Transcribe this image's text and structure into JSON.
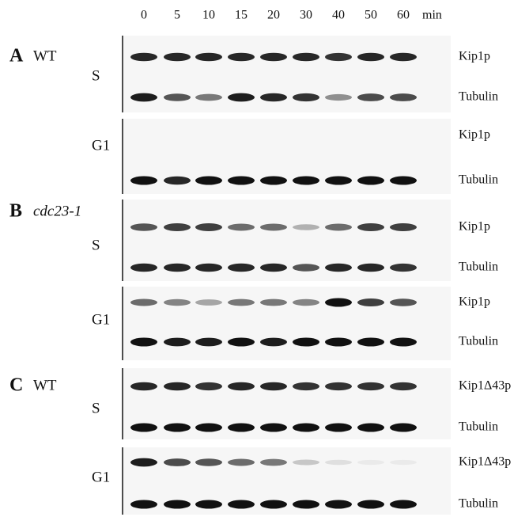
{
  "header": {
    "time_points": [
      "0",
      "5",
      "10",
      "15",
      "20",
      "30",
      "40",
      "50",
      "60"
    ],
    "time_unit": "min"
  },
  "panels": [
    {
      "letter": "A",
      "strain": "WT",
      "blots": [
        {
          "phase": "S",
          "bands": [
            "Kip1p",
            "Tubulin"
          ]
        },
        {
          "phase": "G1",
          "bands": [
            "Kip1p",
            "Tubulin"
          ]
        }
      ]
    },
    {
      "letter": "B",
      "strain": "cdc23-1",
      "blots": [
        {
          "phase": "S",
          "bands": [
            "Kip1p",
            "Tubulin"
          ]
        },
        {
          "phase": "G1",
          "bands": [
            "Kip1p",
            "Tubulin"
          ]
        }
      ]
    },
    {
      "letter": "C",
      "strain": "WT",
      "blots": [
        {
          "phase": "S",
          "bands": [
            "Kip1Δ43p",
            "Tubulin"
          ]
        },
        {
          "phase": "G1",
          "bands": [
            "Kip1Δ43p",
            "Tubulin"
          ]
        }
      ]
    }
  ]
}
